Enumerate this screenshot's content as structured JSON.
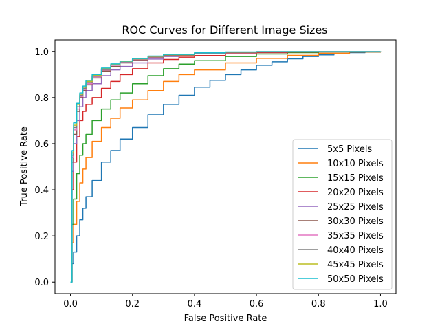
{
  "chart_data": {
    "type": "line",
    "title": "ROC Curves for Different Image Sizes",
    "xlabel": "False Positive Rate",
    "ylabel": "True Positive Rate",
    "xlim": [
      -0.05,
      1.05
    ],
    "ylim": [
      -0.05,
      1.05
    ],
    "xticks": [
      0.0,
      0.2,
      0.4,
      0.6,
      0.8,
      1.0
    ],
    "yticks": [
      0.0,
      0.2,
      0.4,
      0.6,
      0.8,
      1.0
    ],
    "xtick_labels": [
      "0.0",
      "0.2",
      "0.4",
      "0.6",
      "0.8",
      "1.0"
    ],
    "ytick_labels": [
      "0.0",
      "0.2",
      "0.4",
      "0.6",
      "0.8",
      "1.0"
    ],
    "grid": false,
    "legend_position": "lower-right",
    "series": [
      {
        "name": "5x5 Pixels",
        "color": "#1f77b4",
        "x": [
          0,
          0.005,
          0.01,
          0.02,
          0.03,
          0.04,
          0.05,
          0.07,
          0.1,
          0.13,
          0.16,
          0.2,
          0.25,
          0.3,
          0.35,
          0.4,
          0.45,
          0.5,
          0.55,
          0.6,
          0.65,
          0.7,
          0.75,
          0.8,
          0.85,
          0.9,
          0.95,
          1.0
        ],
        "y": [
          0,
          0.08,
          0.13,
          0.2,
          0.27,
          0.32,
          0.37,
          0.44,
          0.52,
          0.57,
          0.62,
          0.67,
          0.725,
          0.77,
          0.81,
          0.845,
          0.875,
          0.9,
          0.92,
          0.94,
          0.955,
          0.968,
          0.978,
          0.985,
          0.99,
          0.995,
          0.998,
          1.0
        ]
      },
      {
        "name": "10x10 Pixels",
        "color": "#ff7f0e",
        "x": [
          0,
          0.005,
          0.01,
          0.02,
          0.03,
          0.04,
          0.05,
          0.07,
          0.1,
          0.13,
          0.16,
          0.2,
          0.25,
          0.3,
          0.35,
          0.4,
          0.5,
          0.6,
          0.7,
          0.8,
          0.9,
          1.0
        ],
        "y": [
          0,
          0.17,
          0.25,
          0.35,
          0.43,
          0.49,
          0.54,
          0.61,
          0.67,
          0.71,
          0.755,
          0.79,
          0.83,
          0.87,
          0.9,
          0.92,
          0.95,
          0.97,
          0.983,
          0.992,
          0.997,
          1.0
        ]
      },
      {
        "name": "15x15 Pixels",
        "color": "#2ca02c",
        "x": [
          0,
          0.005,
          0.01,
          0.02,
          0.03,
          0.04,
          0.05,
          0.07,
          0.1,
          0.13,
          0.16,
          0.2,
          0.25,
          0.3,
          0.35,
          0.4,
          0.5,
          0.6,
          0.7,
          0.8,
          1.0
        ],
        "y": [
          0,
          0.25,
          0.36,
          0.47,
          0.55,
          0.6,
          0.64,
          0.7,
          0.75,
          0.79,
          0.82,
          0.86,
          0.895,
          0.925,
          0.945,
          0.96,
          0.978,
          0.989,
          0.995,
          0.998,
          1.0
        ]
      },
      {
        "name": "20x20 Pixels",
        "color": "#d62728",
        "x": [
          0,
          0.005,
          0.01,
          0.02,
          0.03,
          0.04,
          0.05,
          0.07,
          0.1,
          0.13,
          0.16,
          0.2,
          0.25,
          0.3,
          0.35,
          0.4,
          0.5,
          0.6,
          0.7,
          0.8,
          1.0
        ],
        "y": [
          0,
          0.4,
          0.52,
          0.63,
          0.7,
          0.74,
          0.77,
          0.8,
          0.84,
          0.87,
          0.9,
          0.925,
          0.95,
          0.965,
          0.975,
          0.982,
          0.99,
          0.995,
          0.998,
          0.999,
          1.0
        ]
      },
      {
        "name": "25x25 Pixels",
        "color": "#9467bd",
        "x": [
          0,
          0.005,
          0.01,
          0.02,
          0.03,
          0.04,
          0.05,
          0.07,
          0.1,
          0.13,
          0.16,
          0.2,
          0.25,
          0.3,
          0.35,
          0.4,
          0.5,
          0.6,
          0.7,
          1.0
        ],
        "y": [
          0,
          0.48,
          0.6,
          0.7,
          0.76,
          0.8,
          0.83,
          0.86,
          0.895,
          0.92,
          0.935,
          0.95,
          0.967,
          0.978,
          0.985,
          0.99,
          0.995,
          0.998,
          0.999,
          1.0
        ]
      },
      {
        "name": "30x30 Pixels",
        "color": "#8c564b",
        "x": [
          0,
          0.005,
          0.01,
          0.02,
          0.03,
          0.04,
          0.05,
          0.07,
          0.1,
          0.13,
          0.16,
          0.2,
          0.25,
          0.3,
          0.4,
          0.5,
          0.6,
          1.0
        ],
        "y": [
          0,
          0.52,
          0.64,
          0.74,
          0.8,
          0.83,
          0.855,
          0.885,
          0.915,
          0.935,
          0.95,
          0.962,
          0.975,
          0.983,
          0.992,
          0.996,
          0.998,
          1.0
        ]
      },
      {
        "name": "35x35 Pixels",
        "color": "#e377c2",
        "x": [
          0,
          0.005,
          0.01,
          0.02,
          0.03,
          0.04,
          0.05,
          0.07,
          0.1,
          0.13,
          0.16,
          0.2,
          0.25,
          0.3,
          0.4,
          0.5,
          0.6,
          1.0
        ],
        "y": [
          0,
          0.54,
          0.66,
          0.75,
          0.805,
          0.835,
          0.86,
          0.89,
          0.92,
          0.94,
          0.953,
          0.965,
          0.977,
          0.985,
          0.993,
          0.997,
          0.999,
          1.0
        ]
      },
      {
        "name": "40x40 Pixels",
        "color": "#7f7f7f",
        "x": [
          0,
          0.005,
          0.01,
          0.02,
          0.03,
          0.04,
          0.05,
          0.07,
          0.1,
          0.13,
          0.16,
          0.2,
          0.25,
          0.3,
          0.4,
          0.5,
          0.6,
          1.0
        ],
        "y": [
          0,
          0.55,
          0.67,
          0.76,
          0.81,
          0.84,
          0.865,
          0.893,
          0.922,
          0.942,
          0.955,
          0.967,
          0.978,
          0.986,
          0.993,
          0.997,
          0.999,
          1.0
        ]
      },
      {
        "name": "45x45 Pixels",
        "color": "#bcbd22",
        "x": [
          0,
          0.005,
          0.01,
          0.02,
          0.03,
          0.04,
          0.05,
          0.07,
          0.1,
          0.13,
          0.16,
          0.2,
          0.25,
          0.3,
          0.4,
          0.5,
          0.6,
          1.0
        ],
        "y": [
          0,
          0.56,
          0.68,
          0.77,
          0.815,
          0.845,
          0.87,
          0.896,
          0.925,
          0.944,
          0.957,
          0.968,
          0.979,
          0.986,
          0.994,
          0.997,
          0.999,
          1.0
        ]
      },
      {
        "name": "50x50 Pixels",
        "color": "#17becf",
        "x": [
          0,
          0.005,
          0.01,
          0.02,
          0.03,
          0.04,
          0.05,
          0.07,
          0.1,
          0.13,
          0.16,
          0.2,
          0.25,
          0.3,
          0.4,
          0.5,
          0.6,
          1.0
        ],
        "y": [
          0,
          0.57,
          0.69,
          0.775,
          0.82,
          0.85,
          0.875,
          0.9,
          0.928,
          0.946,
          0.958,
          0.969,
          0.98,
          0.987,
          0.994,
          0.998,
          0.999,
          1.0
        ]
      }
    ]
  }
}
